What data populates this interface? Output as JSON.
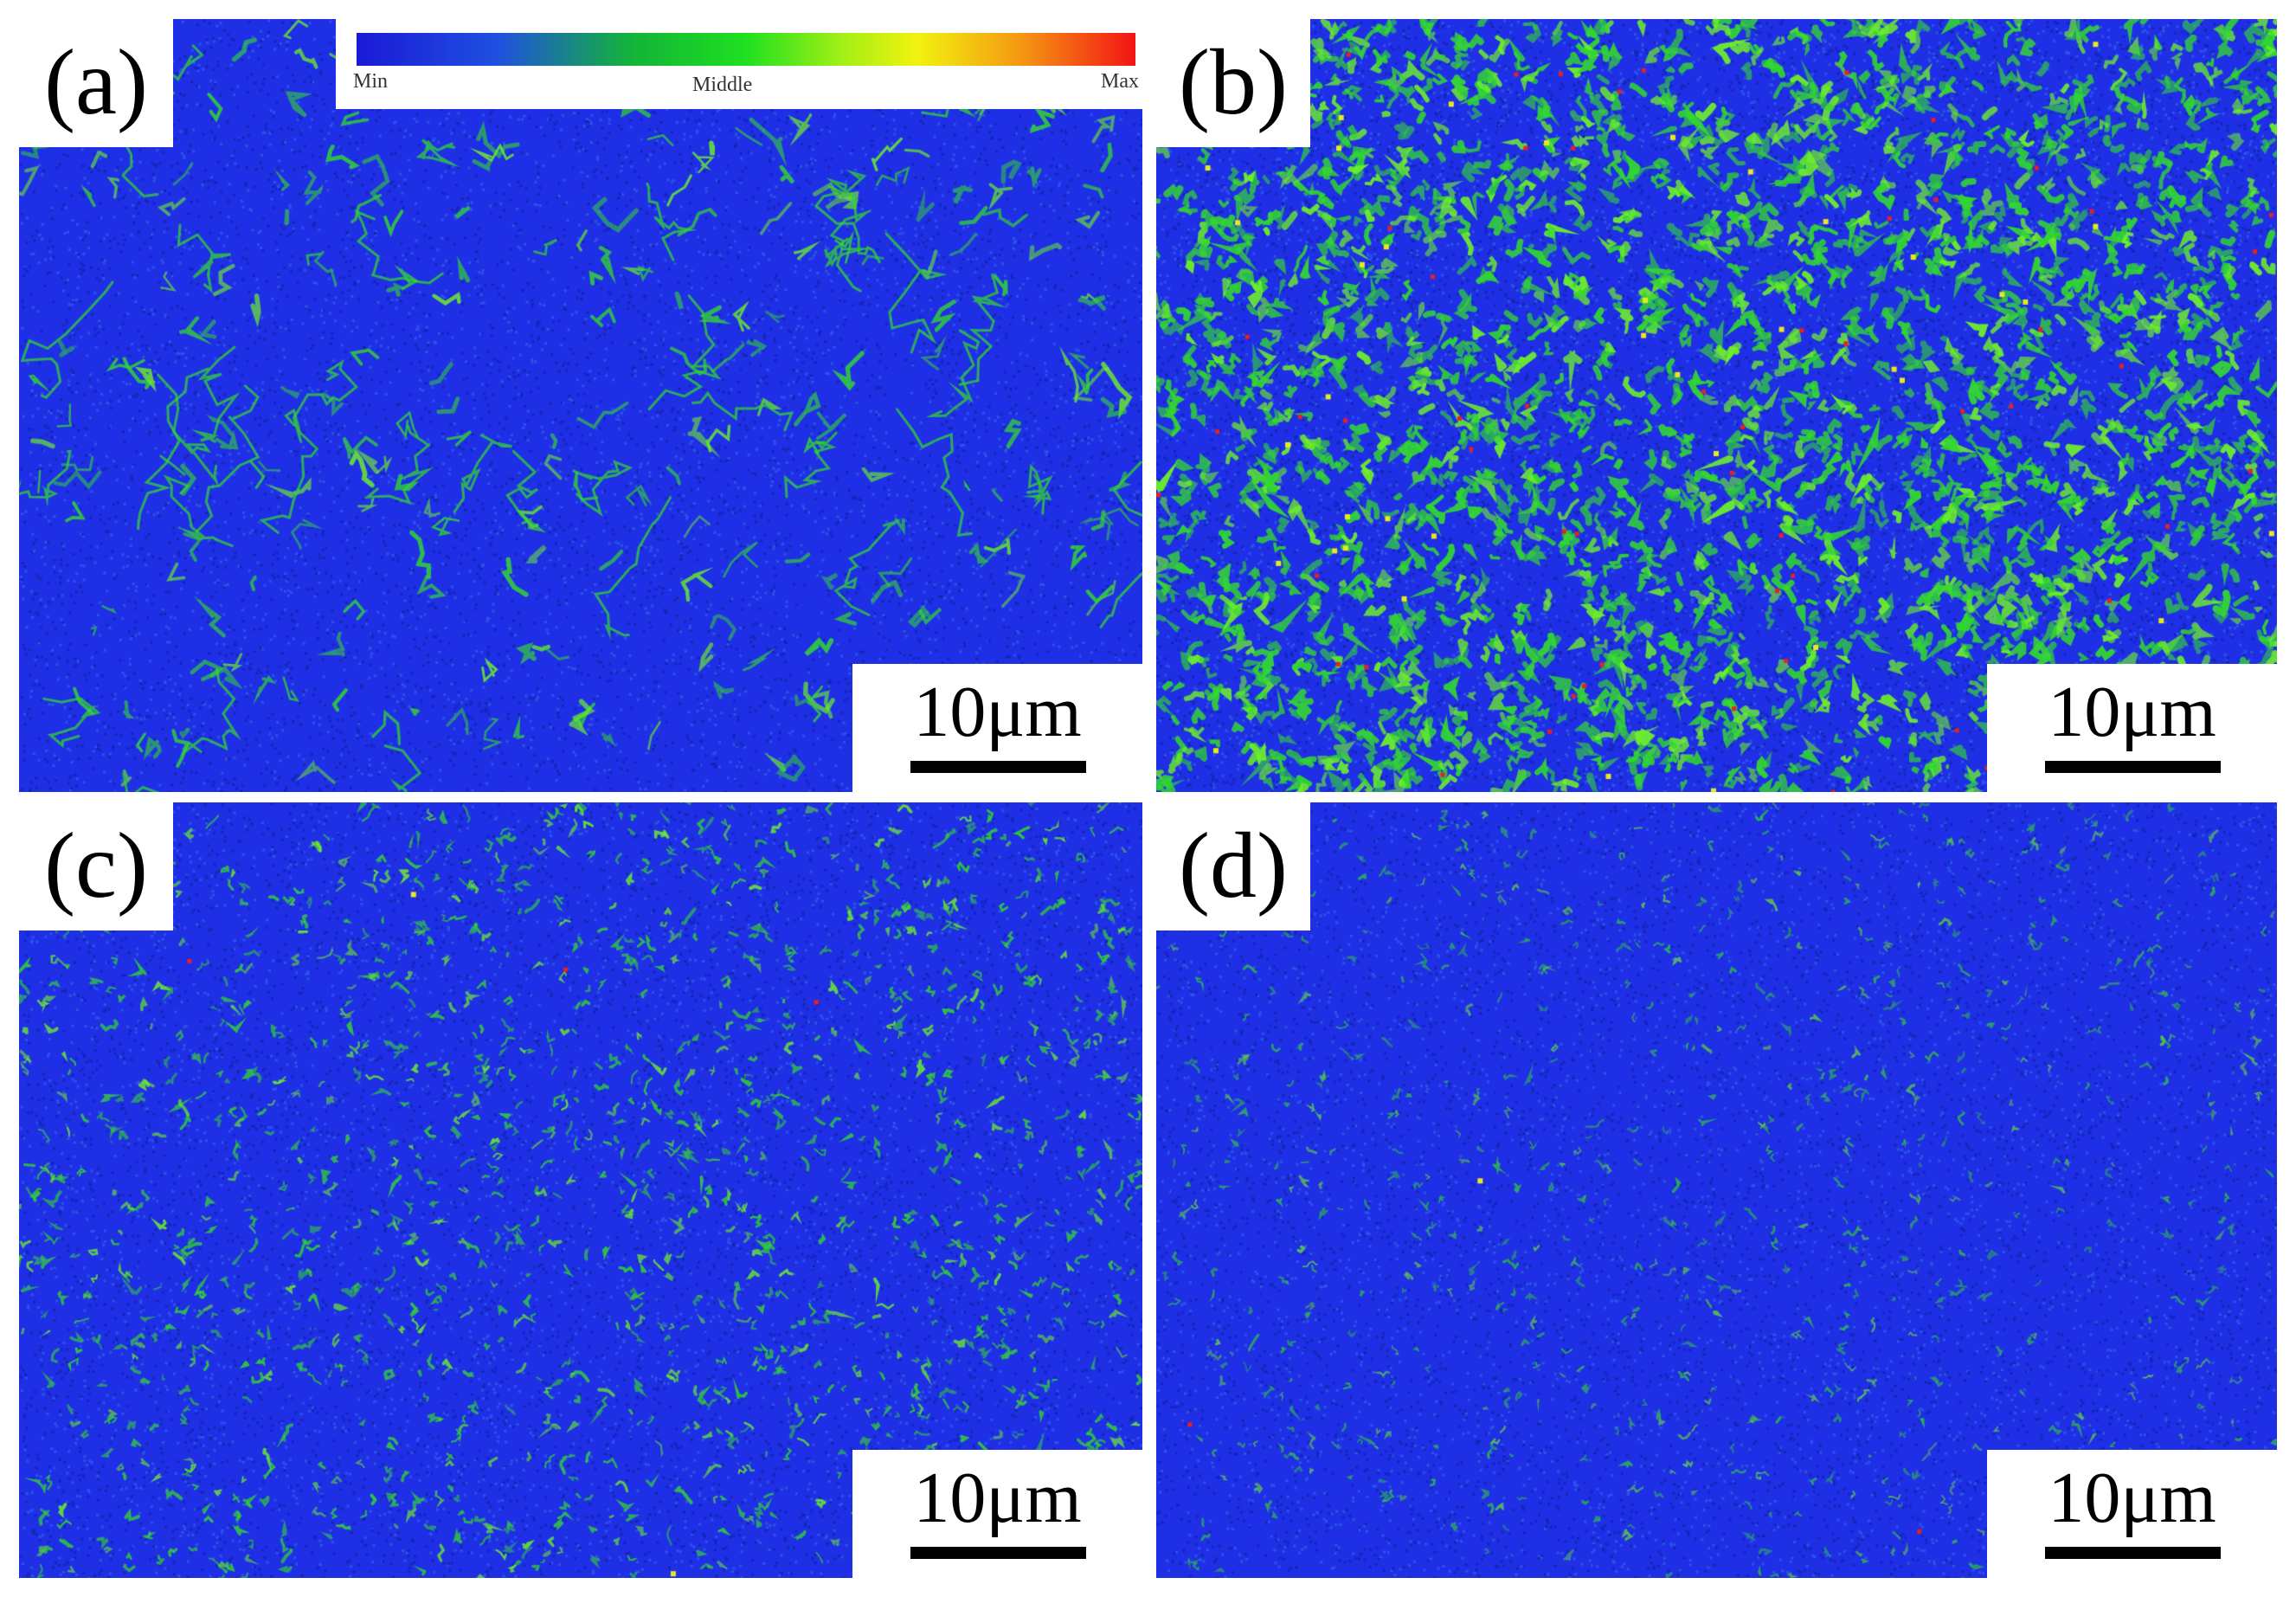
{
  "panels": [
    {
      "id": "a",
      "label": "(a)",
      "scale_text": "10μm"
    },
    {
      "id": "b",
      "label": "(b)",
      "scale_text": "10μm"
    },
    {
      "id": "c",
      "label": "(c)",
      "scale_text": "10μm"
    },
    {
      "id": "d",
      "label": "(d)",
      "scale_text": "10μm"
    }
  ],
  "legend": {
    "min_label": "Min",
    "mid_label": "Middle",
    "max_label": "Max",
    "colors": [
      "#1a1ad6",
      "#13b23a",
      "#1fe01f",
      "#f2f20f",
      "#f59a12",
      "#f21414"
    ]
  },
  "map_colors": {
    "background_blue": "#1f2fe6",
    "dark_blue": "#1426b8",
    "green": "#33d633",
    "light_green": "#6ef02a",
    "yellow": "#e8e820",
    "red": "#e82020"
  }
}
